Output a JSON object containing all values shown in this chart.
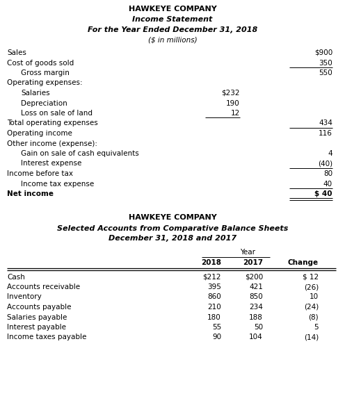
{
  "title1_line1": "HAWKEYE COMPANY",
  "title1_line2": "Income Statement",
  "title1_line3": "For the Year Ended December 31, 2018",
  "title1_line4": "($ in millions)",
  "income_stmt": [
    {
      "label": "Sales",
      "indent": 0,
      "mid_val": null,
      "right_val": "$900",
      "bold": false,
      "ul_mid": false,
      "ul_right": false,
      "dbl_right": false
    },
    {
      "label": "Cost of goods sold",
      "indent": 0,
      "mid_val": null,
      "right_val": "350",
      "bold": false,
      "ul_mid": false,
      "ul_right": true,
      "dbl_right": false
    },
    {
      "label": "Gross margin",
      "indent": 1,
      "mid_val": null,
      "right_val": "550",
      "bold": false,
      "ul_mid": false,
      "ul_right": false,
      "dbl_right": false
    },
    {
      "label": "Operating expenses:",
      "indent": 0,
      "mid_val": null,
      "right_val": null,
      "bold": false,
      "ul_mid": false,
      "ul_right": false,
      "dbl_right": false
    },
    {
      "label": "Salaries",
      "indent": 1,
      "mid_val": "$232",
      "right_val": null,
      "bold": false,
      "ul_mid": false,
      "ul_right": false,
      "dbl_right": false
    },
    {
      "label": "Depreciation",
      "indent": 1,
      "mid_val": "190",
      "right_val": null,
      "bold": false,
      "ul_mid": false,
      "ul_right": false,
      "dbl_right": false
    },
    {
      "label": "Loss on sale of land",
      "indent": 1,
      "mid_val": "12",
      "right_val": null,
      "bold": false,
      "ul_mid": true,
      "ul_right": false,
      "dbl_right": false
    },
    {
      "label": "Total operating expenses",
      "indent": 0,
      "mid_val": null,
      "right_val": "434",
      "bold": false,
      "ul_mid": false,
      "ul_right": true,
      "dbl_right": false
    },
    {
      "label": "Operating income",
      "indent": 0,
      "mid_val": null,
      "right_val": "116",
      "bold": false,
      "ul_mid": false,
      "ul_right": false,
      "dbl_right": false
    },
    {
      "label": "Other income (expense):",
      "indent": 0,
      "mid_val": null,
      "right_val": null,
      "bold": false,
      "ul_mid": false,
      "ul_right": false,
      "dbl_right": false
    },
    {
      "label": "Gain on sale of cash equivalents",
      "indent": 1,
      "mid_val": null,
      "right_val": "4",
      "bold": false,
      "ul_mid": false,
      "ul_right": false,
      "dbl_right": false
    },
    {
      "label": "Interest expense",
      "indent": 1,
      "mid_val": null,
      "right_val": "(40)",
      "bold": false,
      "ul_mid": false,
      "ul_right": true,
      "dbl_right": false
    },
    {
      "label": "Income before tax",
      "indent": 0,
      "mid_val": null,
      "right_val": "80",
      "bold": false,
      "ul_mid": false,
      "ul_right": false,
      "dbl_right": false
    },
    {
      "label": "Income tax expense",
      "indent": 1,
      "mid_val": null,
      "right_val": "40",
      "bold": false,
      "ul_mid": false,
      "ul_right": true,
      "dbl_right": false
    },
    {
      "label": "Net income",
      "indent": 0,
      "mid_val": null,
      "right_val": "$ 40",
      "bold": true,
      "ul_mid": false,
      "ul_right": true,
      "dbl_right": true
    }
  ],
  "title2_line1": "HAWKEYE COMPANY",
  "title2_line2": "Selected Accounts from Comparative Balance Sheets",
  "title2_line3": "December 31, 2018 and 2017",
  "bs_header_year": "Year",
  "bs_col_headers": [
    "2018",
    "2017",
    "Change"
  ],
  "bs_rows": [
    {
      "label": "Cash",
      "val2018": "$212",
      "val2017": "$200",
      "change": "$ 12"
    },
    {
      "label": "Accounts receivable",
      "val2018": "395",
      "val2017": "421",
      "change": "(26)"
    },
    {
      "label": "Inventory",
      "val2018": "860",
      "val2017": "850",
      "change": "10"
    },
    {
      "label": "Accounts payable",
      "val2018": "210",
      "val2017": "234",
      "change": "(24)"
    },
    {
      "label": "Salaries payable",
      "val2018": "180",
      "val2017": "188",
      "change": "(8)"
    },
    {
      "label": "Interest payable",
      "val2018": "55",
      "val2017": "50",
      "change": "5"
    },
    {
      "label": "Income taxes payable",
      "val2018": "90",
      "val2017": "104",
      "change": "(14)"
    }
  ],
  "bg_color": "#ffffff",
  "text_color": "#000000",
  "font_size": 7.5,
  "title_font_size": 8.0
}
